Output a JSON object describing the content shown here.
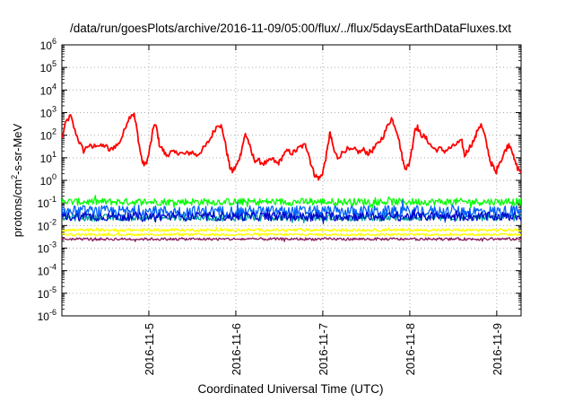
{
  "chart_data": {
    "type": "line",
    "title": "/data/run/goesPlots/archive/2016-11-09/05:00/flux/../flux/5daysEarthDataFluxes.txt",
    "xlabel": "Coordinated Universal Time (UTC)",
    "ylabel_parts": {
      "pre": "protons/cm",
      "sup": "2",
      "post": "-s-sr-MeV"
    },
    "y_scale": "log",
    "ylim": [
      1e-06,
      1000000.0
    ],
    "y_ticks": [
      {
        "exp": -6,
        "label_base": "10",
        "label_exp": "-6"
      },
      {
        "exp": -5,
        "label_base": "10",
        "label_exp": "-5"
      },
      {
        "exp": -4,
        "label_base": "10",
        "label_exp": "-4"
      },
      {
        "exp": -3,
        "label_base": "10",
        "label_exp": "-3"
      },
      {
        "exp": -2,
        "label_base": "10",
        "label_exp": "-2"
      },
      {
        "exp": -1,
        "label_base": "10",
        "label_exp": "-1"
      },
      {
        "exp": 0,
        "label_base": "10",
        "label_exp": "0"
      },
      {
        "exp": 1,
        "label_base": "10",
        "label_exp": "1"
      },
      {
        "exp": 2,
        "label_base": "10",
        "label_exp": "2"
      },
      {
        "exp": 3,
        "label_base": "10",
        "label_exp": "3"
      },
      {
        "exp": 4,
        "label_base": "10",
        "label_exp": "4"
      },
      {
        "exp": 5,
        "label_base": "10",
        "label_exp": "5"
      },
      {
        "exp": 6,
        "label_base": "10",
        "label_exp": "6"
      }
    ],
    "x_range_days": [
      4.0,
      9.28
    ],
    "x_ticks": [
      {
        "day": 5,
        "label": "2016-11-5"
      },
      {
        "day": 6,
        "label": "2016-11-6"
      },
      {
        "day": 7,
        "label": "2016-11-7"
      },
      {
        "day": 8,
        "label": "2016-11-8"
      },
      {
        "day": 9,
        "label": "2016-11-9"
      }
    ],
    "grid": true,
    "legend": "none",
    "series": [
      {
        "color": "#ff0000",
        "width": 1.8,
        "noise": 0.12,
        "log_points": [
          [
            4.0,
            1.85
          ],
          [
            4.05,
            2.6
          ],
          [
            4.1,
            2.85
          ],
          [
            4.15,
            2.2
          ],
          [
            4.2,
            1.7
          ],
          [
            4.25,
            1.3
          ],
          [
            4.3,
            1.55
          ],
          [
            4.35,
            1.45
          ],
          [
            4.4,
            1.6
          ],
          [
            4.45,
            1.5
          ],
          [
            4.5,
            1.55
          ],
          [
            4.55,
            1.3
          ],
          [
            4.6,
            1.5
          ],
          [
            4.65,
            1.6
          ],
          [
            4.7,
            2.0
          ],
          [
            4.75,
            2.6
          ],
          [
            4.8,
            2.95
          ],
          [
            4.83,
            2.9
          ],
          [
            4.86,
            2.3
          ],
          [
            4.9,
            1.3
          ],
          [
            4.93,
            0.75
          ],
          [
            4.96,
            0.7
          ],
          [
            4.99,
            1.0
          ],
          [
            5.03,
            1.8
          ],
          [
            5.06,
            2.5
          ],
          [
            5.09,
            2.3
          ],
          [
            5.12,
            1.6
          ],
          [
            5.16,
            1.35
          ],
          [
            5.2,
            1.1
          ],
          [
            5.25,
            1.25
          ],
          [
            5.3,
            1.2
          ],
          [
            5.35,
            1.25
          ],
          [
            5.4,
            1.15
          ],
          [
            5.45,
            1.2
          ],
          [
            5.5,
            1.25
          ],
          [
            5.55,
            1.1
          ],
          [
            5.6,
            1.3
          ],
          [
            5.65,
            1.5
          ],
          [
            5.7,
            1.8
          ],
          [
            5.75,
            2.2
          ],
          [
            5.8,
            2.5
          ],
          [
            5.83,
            2.4
          ],
          [
            5.86,
            2.0
          ],
          [
            5.9,
            1.2
          ],
          [
            5.93,
            0.6
          ],
          [
            5.96,
            0.4
          ],
          [
            5.99,
            0.55
          ],
          [
            6.02,
            0.75
          ],
          [
            6.05,
            1.1
          ],
          [
            6.08,
            1.6
          ],
          [
            6.11,
            2.05
          ],
          [
            6.14,
            1.8
          ],
          [
            6.18,
            1.2
          ],
          [
            6.22,
            0.9
          ],
          [
            6.27,
            0.85
          ],
          [
            6.32,
            0.75
          ],
          [
            6.37,
            0.8
          ],
          [
            6.42,
            0.95
          ],
          [
            6.47,
            0.75
          ],
          [
            6.5,
            0.8
          ],
          [
            6.55,
            1.15
          ],
          [
            6.6,
            1.3
          ],
          [
            6.65,
            1.2
          ],
          [
            6.7,
            1.35
          ],
          [
            6.75,
            1.5
          ],
          [
            6.8,
            1.55
          ],
          [
            6.83,
            1.3
          ],
          [
            6.86,
            0.8
          ],
          [
            6.9,
            0.3
          ],
          [
            6.93,
            0.15
          ],
          [
            6.96,
            0.1
          ],
          [
            6.99,
            0.25
          ],
          [
            7.02,
            0.7
          ],
          [
            7.05,
            1.3
          ],
          [
            7.08,
            2.1
          ],
          [
            7.1,
            1.8
          ],
          [
            7.13,
            1.3
          ],
          [
            7.17,
            1.0
          ],
          [
            7.22,
            1.2
          ],
          [
            7.27,
            1.4
          ],
          [
            7.32,
            1.3
          ],
          [
            7.37,
            1.35
          ],
          [
            7.42,
            1.25
          ],
          [
            7.47,
            1.35
          ],
          [
            7.52,
            1.2
          ],
          [
            7.56,
            1.3
          ],
          [
            7.6,
            1.45
          ],
          [
            7.65,
            1.7
          ],
          [
            7.7,
            2.0
          ],
          [
            7.75,
            2.45
          ],
          [
            7.79,
            2.75
          ],
          [
            7.82,
            2.5
          ],
          [
            7.86,
            2.1
          ],
          [
            7.9,
            1.3
          ],
          [
            7.93,
            0.7
          ],
          [
            7.96,
            0.55
          ],
          [
            7.99,
            0.7
          ],
          [
            8.03,
            1.5
          ],
          [
            8.06,
            2.3
          ],
          [
            8.09,
            2.35
          ],
          [
            8.12,
            2.05
          ],
          [
            8.16,
            1.95
          ],
          [
            8.2,
            1.8
          ],
          [
            8.25,
            1.5
          ],
          [
            8.3,
            1.35
          ],
          [
            8.35,
            1.4
          ],
          [
            8.4,
            1.3
          ],
          [
            8.45,
            1.4
          ],
          [
            8.5,
            1.5
          ],
          [
            8.55,
            1.65
          ],
          [
            8.6,
            1.7
          ],
          [
            8.63,
            1.1
          ],
          [
            8.66,
            1.3
          ],
          [
            8.7,
            1.55
          ],
          [
            8.75,
            1.85
          ],
          [
            8.79,
            2.35
          ],
          [
            8.82,
            2.45
          ],
          [
            8.86,
            2.0
          ],
          [
            8.9,
            1.3
          ],
          [
            8.93,
            0.8
          ],
          [
            8.96,
            0.6
          ],
          [
            8.99,
            0.3
          ],
          [
            9.02,
            0.75
          ],
          [
            9.06,
            0.95
          ],
          [
            9.1,
            1.35
          ],
          [
            9.14,
            1.6
          ],
          [
            9.17,
            1.45
          ],
          [
            9.2,
            0.9
          ],
          [
            9.24,
            0.55
          ],
          [
            9.28,
            0.35
          ]
        ]
      },
      {
        "color": "#00ff00",
        "width": 1.3,
        "noise": 0.16,
        "base": -0.95,
        "n": 520
      },
      {
        "color": "#00a0a0",
        "width": 1.3,
        "noise": 0.15,
        "base": -1.65,
        "n": 520
      },
      {
        "color": "#0060ff",
        "width": 1.3,
        "noise": 0.26,
        "base": -1.38,
        "n": 520
      },
      {
        "color": "#0000cc",
        "width": 1.2,
        "noise": 0.2,
        "base": -1.6,
        "n": 520
      },
      {
        "color": "#ffff00",
        "width": 1.4,
        "noise": 0.06,
        "base": -2.2,
        "n": 520
      },
      {
        "color": "#ffff00",
        "width": 1.4,
        "noise": 0.05,
        "base": -2.4,
        "n": 520
      },
      {
        "color": "#8b1a5c",
        "width": 1.3,
        "noise": 0.06,
        "base": -2.6,
        "n": 520
      }
    ]
  }
}
